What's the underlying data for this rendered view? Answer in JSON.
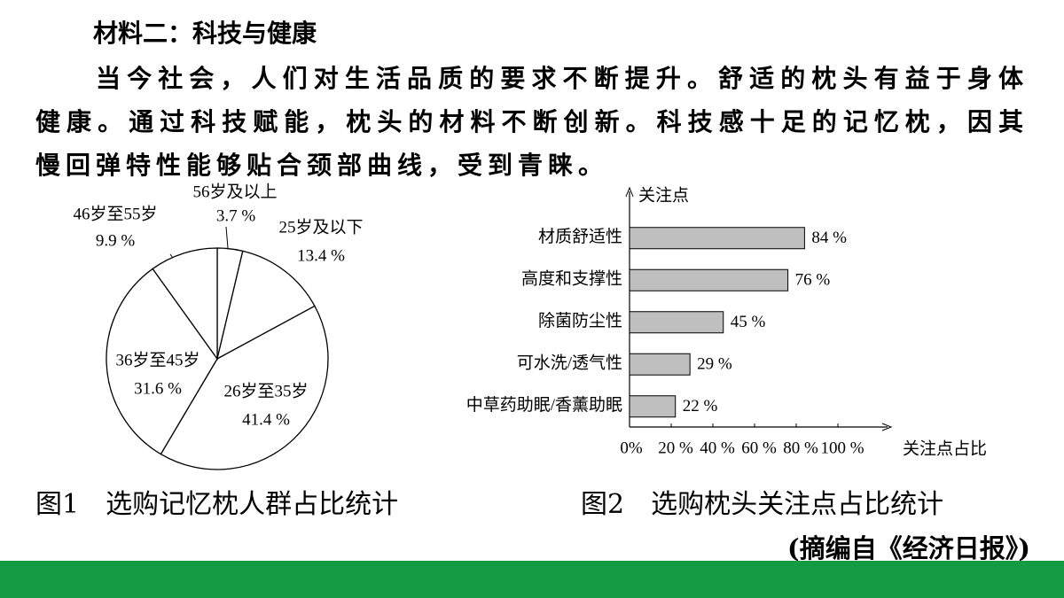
{
  "heading": "材料二：科技与健康",
  "paragraph": "当今社会，人们对生活品质的要求不断提升。舒适的枕头有益于身体健康。通过科技赋能，枕头的材料不断创新。科技感十足的记忆枕，因其慢回弹特性能够贴合颈部曲线，受到青睐。",
  "chart_data": [
    {
      "type": "pie",
      "title": "图1　选购记忆枕人群占比统计",
      "categories": [
        "56岁及以上",
        "25岁及以下",
        "26岁至35岁",
        "36岁至45岁",
        "46岁至55岁"
      ],
      "values": [
        3.7,
        13.4,
        41.4,
        31.6,
        9.9
      ],
      "value_labels": [
        "3.7 %",
        "13.4 %",
        "41.4 %",
        "31.6 %",
        "9.9 %"
      ],
      "color": "#ffffff"
    },
    {
      "type": "barh",
      "title": "图2　选购枕头关注点占比统计",
      "y_label": "关注点",
      "x_label": "关注点占比",
      "categories": [
        "材质舒适性",
        "高度和支撑性",
        "除菌防尘性",
        "可水洗/透气性",
        "中草药助眠/香薰助眠"
      ],
      "values": [
        84,
        76,
        45,
        29,
        22
      ],
      "value_labels": [
        "84 %",
        "76 %",
        "45 %",
        "29 %",
        "22 %"
      ],
      "color": "#bfbfbf",
      "xlim": [
        0,
        100
      ],
      "xticks": [
        {
          "value": 0,
          "label": "0%"
        },
        {
          "value": 20,
          "label": "20 %"
        },
        {
          "value": 40,
          "label": "40 %"
        },
        {
          "value": 60,
          "label": "60 %"
        },
        {
          "value": 80,
          "label": "80 %"
        },
        {
          "value": 100,
          "label": "100 %"
        }
      ]
    }
  ],
  "source": "(摘编自《经济日报》)"
}
